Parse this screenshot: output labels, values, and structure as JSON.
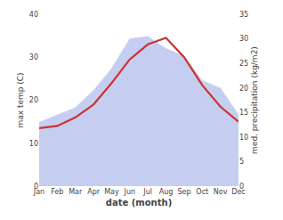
{
  "chart_data": {
    "type": "line",
    "categories": [
      "Jan",
      "Feb",
      "Mar",
      "Apr",
      "May",
      "Jun",
      "Jul",
      "Aug",
      "Sep",
      "Oct",
      "Nov",
      "Dec"
    ],
    "series": [
      {
        "type": "area",
        "axis": "y2",
        "color": "#c5cef0",
        "values": [
          13.0,
          14.5,
          16.0,
          19.5,
          24.0,
          30.0,
          30.5,
          28.0,
          26.5,
          21.5,
          20.0,
          14.5
        ]
      },
      {
        "type": "line",
        "color": "#cc3333",
        "values": [
          13.5,
          14.0,
          16.0,
          19.0,
          24.0,
          29.5,
          33.0,
          34.5,
          30.0,
          23.5,
          18.5,
          15.0
        ]
      }
    ],
    "x_label": "date (month)",
    "y_label": "max temp (C)",
    "y2_label": "med. precipitation (kg/m2)",
    "ylim": [
      0,
      40
    ],
    "yticks": [
      0,
      10,
      20,
      30,
      40
    ],
    "y2lim": [
      0,
      35
    ],
    "y2ticks": [
      0,
      5,
      10,
      15,
      20,
      25,
      30,
      35
    ],
    "grid": false
  }
}
